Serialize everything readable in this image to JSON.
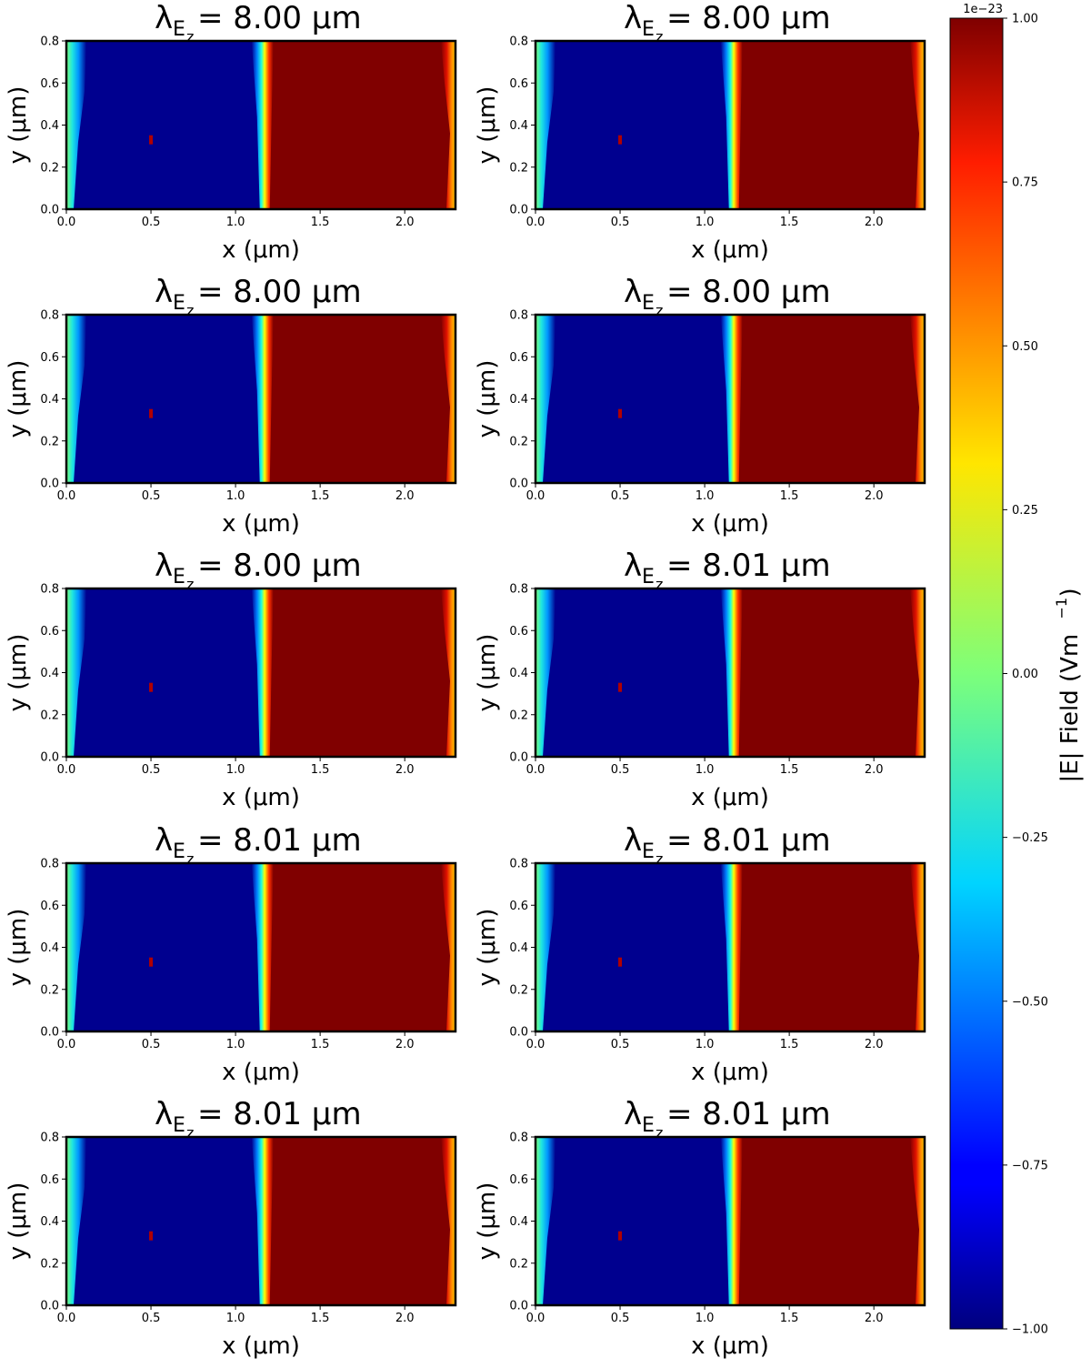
{
  "chart_data": {
    "type": "heatmap",
    "colormap": "jet",
    "panels": [
      {
        "title_symbol": "λ",
        "title_sub": "E",
        "title_subsub": "z",
        "title_value": "= 8.00 μm",
        "xlabel": "x (μm)",
        "ylabel": "y (μm)",
        "xlim": [
          0,
          2.3
        ],
        "ylim": [
          0,
          0.8
        ],
        "x_ticks": [
          "0.0",
          "0.5",
          "1.0",
          "1.5",
          "2.0"
        ],
        "y_ticks": [
          "0.0",
          "0.2",
          "0.4",
          "0.6",
          "0.8"
        ]
      },
      {
        "title_symbol": "λ",
        "title_sub": "E",
        "title_subsub": "z",
        "title_value": "= 8.00 μm",
        "xlabel": "x (μm)",
        "ylabel": "y (μm)",
        "xlim": [
          0,
          2.3
        ],
        "ylim": [
          0,
          0.8
        ],
        "x_ticks": [
          "0.0",
          "0.5",
          "1.0",
          "1.5",
          "2.0"
        ],
        "y_ticks": [
          "0.0",
          "0.2",
          "0.4",
          "0.6",
          "0.8"
        ]
      },
      {
        "title_symbol": "λ",
        "title_sub": "E",
        "title_subsub": "z",
        "title_value": "= 8.00 μm",
        "xlabel": "x (μm)",
        "ylabel": "y (μm)",
        "xlim": [
          0,
          2.3
        ],
        "ylim": [
          0,
          0.8
        ],
        "x_ticks": [
          "0.0",
          "0.5",
          "1.0",
          "1.5",
          "2.0"
        ],
        "y_ticks": [
          "0.0",
          "0.2",
          "0.4",
          "0.6",
          "0.8"
        ]
      },
      {
        "title_symbol": "λ",
        "title_sub": "E",
        "title_subsub": "z",
        "title_value": "= 8.00 μm",
        "xlabel": "x (μm)",
        "ylabel": "y (μm)",
        "xlim": [
          0,
          2.3
        ],
        "ylim": [
          0,
          0.8
        ],
        "x_ticks": [
          "0.0",
          "0.5",
          "1.0",
          "1.5",
          "2.0"
        ],
        "y_ticks": [
          "0.0",
          "0.2",
          "0.4",
          "0.6",
          "0.8"
        ]
      },
      {
        "title_symbol": "λ",
        "title_sub": "E",
        "title_subsub": "z",
        "title_value": "= 8.00 μm",
        "xlabel": "x (μm)",
        "ylabel": "y (μm)",
        "xlim": [
          0,
          2.3
        ],
        "ylim": [
          0,
          0.8
        ],
        "x_ticks": [
          "0.0",
          "0.5",
          "1.0",
          "1.5",
          "2.0"
        ],
        "y_ticks": [
          "0.0",
          "0.2",
          "0.4",
          "0.6",
          "0.8"
        ]
      },
      {
        "title_symbol": "λ",
        "title_sub": "E",
        "title_subsub": "z",
        "title_value": "= 8.01 μm",
        "xlabel": "x (μm)",
        "ylabel": "y (μm)",
        "xlim": [
          0,
          2.3
        ],
        "ylim": [
          0,
          0.8
        ],
        "x_ticks": [
          "0.0",
          "0.5",
          "1.0",
          "1.5",
          "2.0"
        ],
        "y_ticks": [
          "0.0",
          "0.2",
          "0.4",
          "0.6",
          "0.8"
        ]
      },
      {
        "title_symbol": "λ",
        "title_sub": "E",
        "title_subsub": "z",
        "title_value": "= 8.01 μm",
        "xlabel": "x (μm)",
        "ylabel": "y (μm)",
        "xlim": [
          0,
          2.3
        ],
        "ylim": [
          0,
          0.8
        ],
        "x_ticks": [
          "0.0",
          "0.5",
          "1.0",
          "1.5",
          "2.0"
        ],
        "y_ticks": [
          "0.0",
          "0.2",
          "0.4",
          "0.6",
          "0.8"
        ]
      },
      {
        "title_symbol": "λ",
        "title_sub": "E",
        "title_subsub": "z",
        "title_value": "= 8.01 μm",
        "xlabel": "x (μm)",
        "ylabel": "y (μm)",
        "xlim": [
          0,
          2.3
        ],
        "ylim": [
          0,
          0.8
        ],
        "x_ticks": [
          "0.0",
          "0.5",
          "1.0",
          "1.5",
          "2.0"
        ],
        "y_ticks": [
          "0.0",
          "0.2",
          "0.4",
          "0.6",
          "0.8"
        ]
      },
      {
        "title_symbol": "λ",
        "title_sub": "E",
        "title_subsub": "z",
        "title_value": "= 8.01 μm",
        "xlabel": "x (μm)",
        "ylabel": "y (μm)",
        "xlim": [
          0,
          2.3
        ],
        "ylim": [
          0,
          0.8
        ],
        "x_ticks": [
          "0.0",
          "0.5",
          "1.0",
          "1.5",
          "2.0"
        ],
        "y_ticks": [
          "0.0",
          "0.2",
          "0.4",
          "0.6",
          "0.8"
        ]
      },
      {
        "title_symbol": "λ",
        "title_sub": "E",
        "title_subsub": "z",
        "title_value": "= 8.01 μm",
        "xlabel": "x (μm)",
        "ylabel": "y (μm)",
        "xlim": [
          0,
          2.3
        ],
        "ylim": [
          0,
          0.8
        ],
        "x_ticks": [
          "0.0",
          "0.5",
          "1.0",
          "1.5",
          "2.0"
        ],
        "y_ticks": [
          "0.0",
          "0.2",
          "0.4",
          "0.6",
          "0.8"
        ]
      }
    ],
    "field_profile": {
      "source_x": 0.5,
      "source_y": 0.33,
      "interface_x": 1.17,
      "left_value": -1.0,
      "right_value": 1.0
    },
    "colorbar": {
      "label": "|E|  Field (Vm",
      "label_sup": "−1",
      "label_tail": ")",
      "offset_text": "1e−23",
      "range": [
        -1.0,
        1.0
      ],
      "ticks": [
        "−1.00",
        "−0.75",
        "−0.50",
        "−0.25",
        "0.00",
        "0.25",
        "0.50",
        "0.75",
        "1.00"
      ]
    }
  }
}
